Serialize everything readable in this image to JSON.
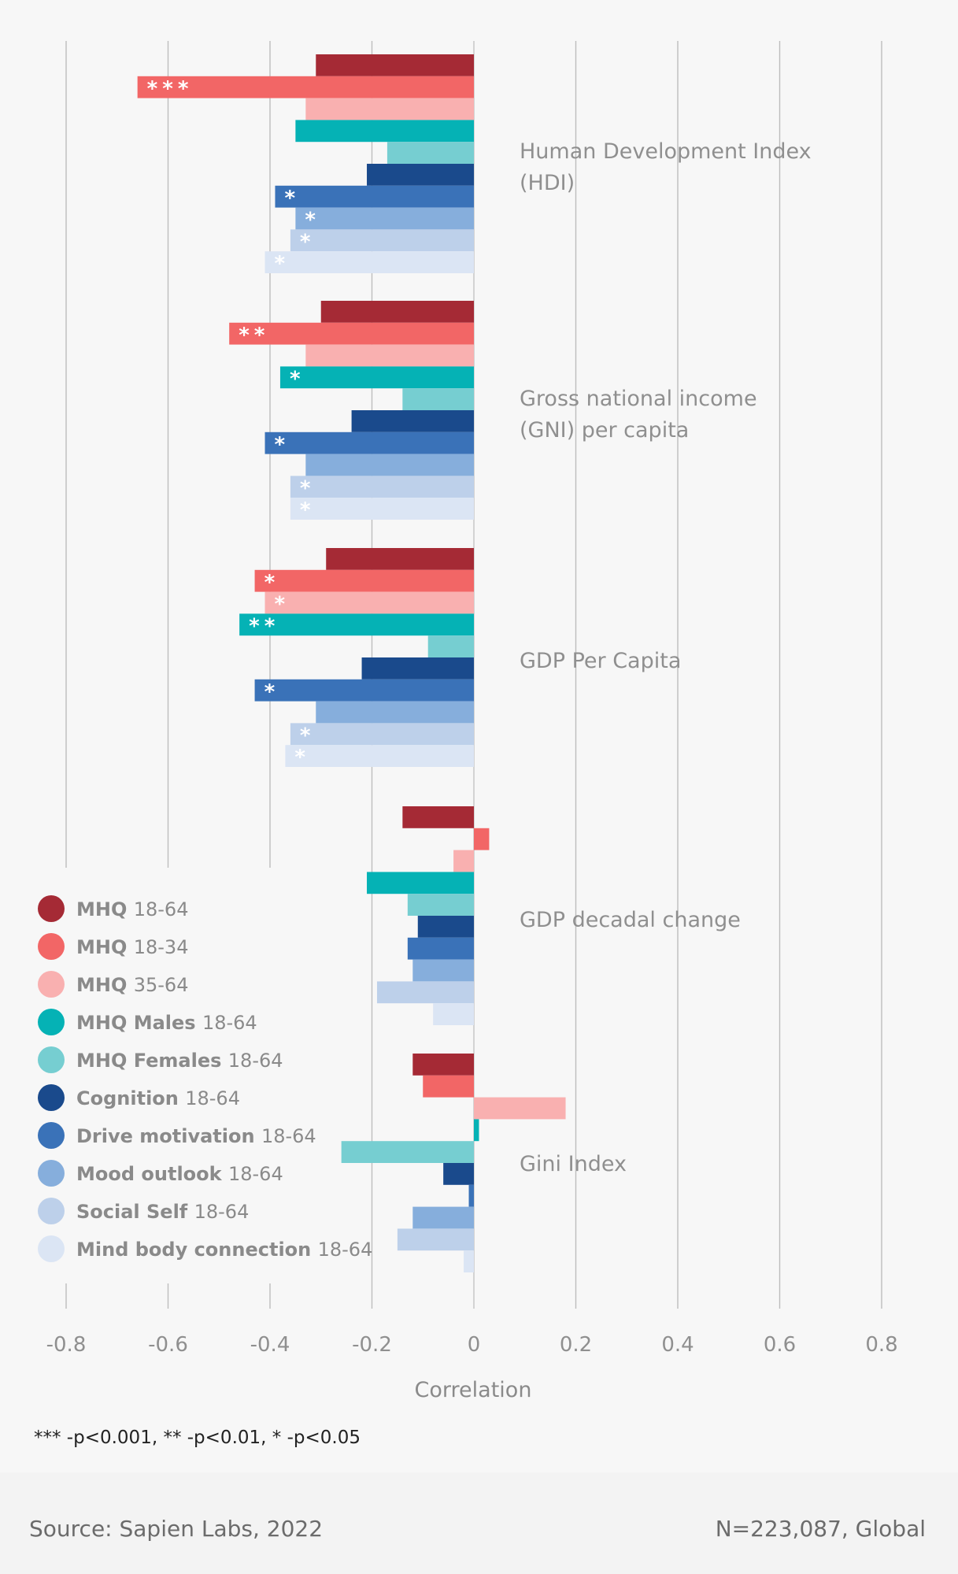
{
  "chart_data": {
    "type": "bar",
    "orientation": "horizontal",
    "xlabel": "Correlation",
    "xlim": [
      -0.8,
      0.8
    ],
    "xticks": [
      "-0.8",
      "-0.6",
      "-0.4",
      "-0.2",
      "0",
      "0.2",
      "0.4",
      "0.6",
      "0.8"
    ],
    "grid": true,
    "legend_position": "bottom-left",
    "categories": [
      "Human Development Index (HDI)",
      "Gross national income (GNI) per capita",
      "GDP Per Capita",
      "GDP decadal change",
      "Gini Index"
    ],
    "series": [
      {
        "name": "MHQ 18-64",
        "color": "#a52a35",
        "values": [
          -0.31,
          -0.3,
          -0.29,
          -0.14,
          -0.12
        ],
        "sig": [
          "",
          "",
          "",
          "",
          ""
        ]
      },
      {
        "name": "MHQ 18-34",
        "color": "#f26666",
        "values": [
          -0.66,
          -0.48,
          -0.43,
          0.03,
          -0.1
        ],
        "sig": [
          "***",
          "**",
          "*",
          "",
          ""
        ]
      },
      {
        "name": "MHQ 35-64",
        "color": "#f9b0b0",
        "values": [
          -0.33,
          -0.33,
          -0.41,
          -0.04,
          0.18
        ],
        "sig": [
          "",
          "",
          "*",
          "",
          ""
        ]
      },
      {
        "name": "MHQ Males 18-64",
        "color": "#05b2b5",
        "values": [
          -0.35,
          -0.38,
          -0.46,
          -0.21,
          0.01
        ],
        "sig": [
          "",
          "*",
          "**",
          "",
          ""
        ]
      },
      {
        "name": "MHQ Females 18-64",
        "color": "#76ced1",
        "values": [
          -0.17,
          -0.14,
          -0.09,
          -0.13,
          -0.26
        ],
        "sig": [
          "",
          "",
          "",
          "",
          ""
        ]
      },
      {
        "name": "Cognition 18-64",
        "color": "#1a4a8c",
        "values": [
          -0.21,
          -0.24,
          -0.22,
          -0.11,
          -0.06
        ],
        "sig": [
          "",
          "",
          "",
          "",
          ""
        ]
      },
      {
        "name": "Drive motivation 18-64",
        "color": "#3a72b8",
        "values": [
          -0.39,
          -0.41,
          -0.43,
          -0.13,
          -0.01
        ],
        "sig": [
          "*",
          "*",
          "*",
          "",
          ""
        ]
      },
      {
        "name": "Mood outlook 18-64",
        "color": "#86aedc",
        "values": [
          -0.35,
          -0.33,
          -0.31,
          -0.12,
          -0.12
        ],
        "sig": [
          "*",
          "",
          "",
          "",
          ""
        ]
      },
      {
        "name": "Social Self 18-64",
        "color": "#bdd0ea",
        "values": [
          -0.36,
          -0.36,
          -0.36,
          -0.19,
          -0.15
        ],
        "sig": [
          "*",
          "*",
          "*",
          "",
          ""
        ]
      },
      {
        "name": "Mind body connection 18-64",
        "color": "#dbe5f4",
        "values": [
          -0.41,
          -0.36,
          -0.37,
          -0.08,
          -0.02
        ],
        "sig": [
          "*",
          "*",
          "*",
          "",
          ""
        ]
      }
    ],
    "significance_note": "*** -p<0.001,  ** -p<0.01,  * -p<0.05"
  },
  "footer": {
    "source": "Source: Sapien Labs, 2022",
    "sample": "N=223,087, Global"
  }
}
